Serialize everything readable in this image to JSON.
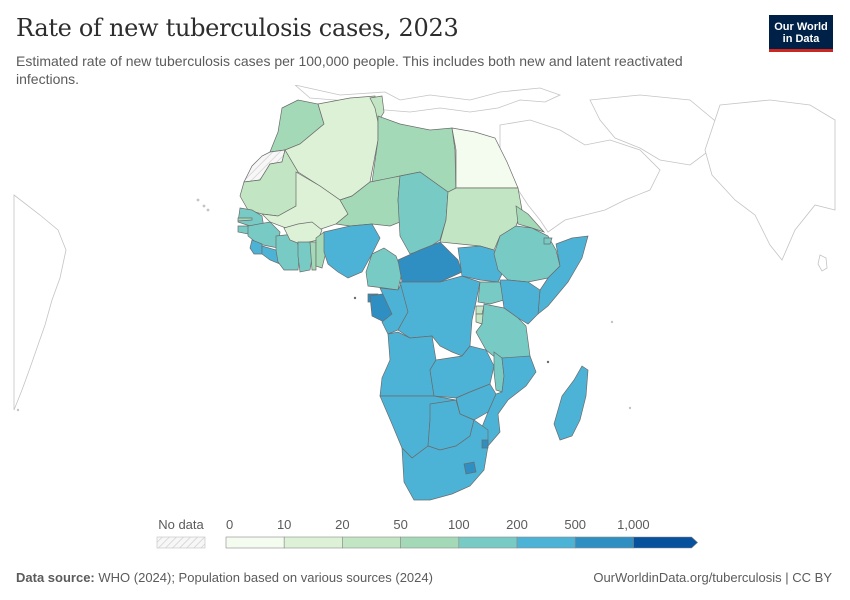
{
  "title": "Rate of new tuberculosis cases, 2023",
  "subtitle": "Estimated rate of new tuberculosis cases per 100,000 people. This includes both new and latent reactivated infections.",
  "logo": {
    "line1": "Our World",
    "line2": "in Data"
  },
  "legend": {
    "no_data_label": "No data",
    "bins": [
      "0",
      "10",
      "20",
      "50",
      "100",
      "200",
      "500",
      "1,000"
    ],
    "colors": [
      "#f4fbef",
      "#ddf1d6",
      "#c2e6c3",
      "#a4d9b7",
      "#78cbc5",
      "#4db3d6",
      "#2f8fc3",
      "#08519c"
    ]
  },
  "colors": {
    "no_data_fill": "#eeeeee",
    "outside_fill": "#ffffff",
    "border": "#6b6b6b"
  },
  "footer": {
    "source_label": "Data source:",
    "source_text": "WHO (2024); Population based on various sources (2024)",
    "url": "OurWorldinData.org/tuberculosis | CC BY"
  }
}
